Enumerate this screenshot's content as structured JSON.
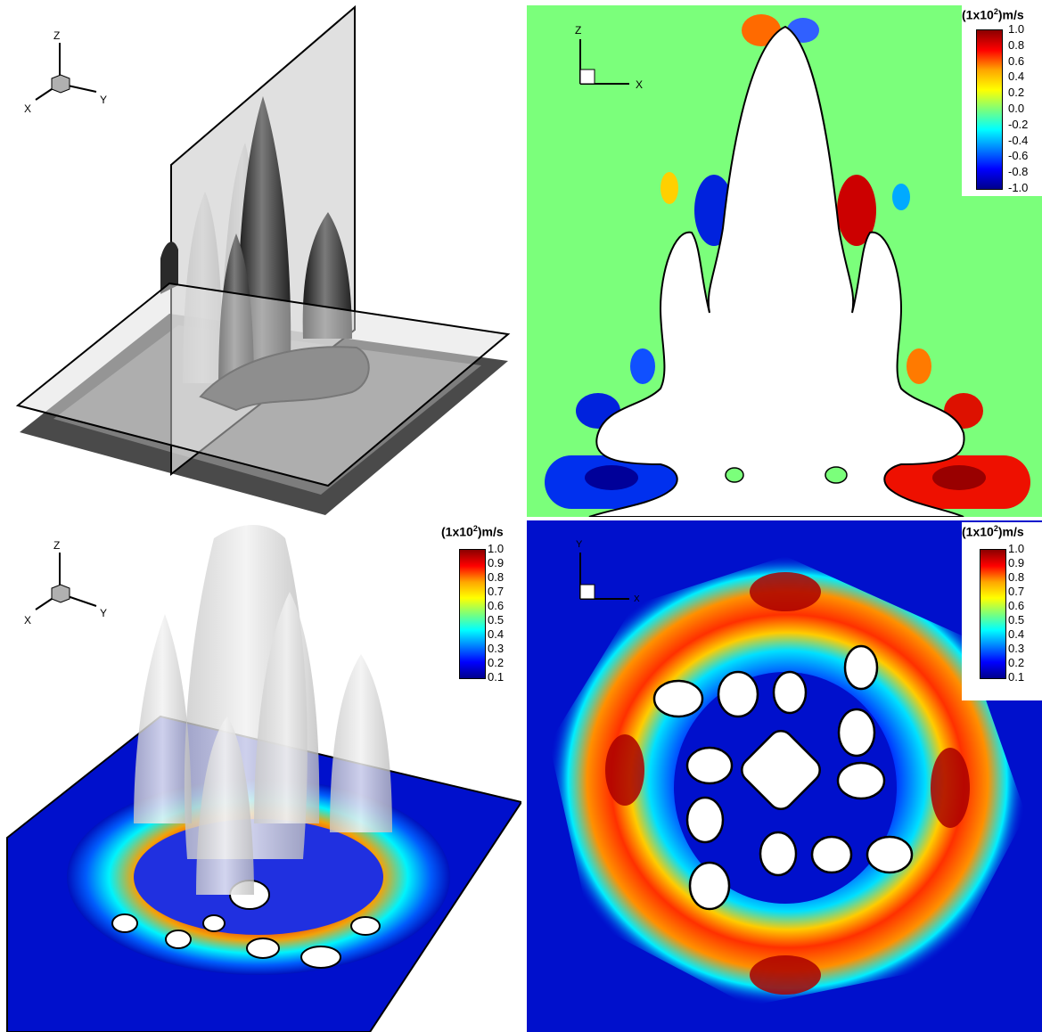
{
  "axes_3d": {
    "z": "Z",
    "x": "X",
    "y": "Y"
  },
  "axes_xz": {
    "z": "Z",
    "x": "X"
  },
  "axes_xy": {
    "y": "Y",
    "x": "X"
  },
  "colorbar_pressure": {
    "title": "(1x10",
    "exp": "2",
    "unit": ")m/s",
    "ticks": [
      "1.0",
      "0.8",
      "0.6",
      "0.4",
      "0.2",
      "0.0",
      "-0.2",
      "-0.4",
      "-0.6",
      "-0.8",
      "-1.0"
    ],
    "colors": [
      "#8b0000",
      "#ff0000",
      "#ffa500",
      "#ffff00",
      "#7bff7b",
      "#00ffff",
      "#0080ff",
      "#0000ff",
      "#00008b"
    ]
  },
  "colorbar_speed": {
    "title": "(1x10",
    "exp": "2",
    "unit": ")m/s",
    "ticks": [
      "1.0",
      "0.9",
      "0.8",
      "0.7",
      "0.6",
      "0.5",
      "0.4",
      "0.3",
      "0.2",
      "0.1"
    ],
    "colors": [
      "#8b0000",
      "#ff0000",
      "#ffa500",
      "#ffff00",
      "#7bff7b",
      "#00ffff",
      "#0080ff",
      "#0000ff",
      "#00008b"
    ]
  }
}
